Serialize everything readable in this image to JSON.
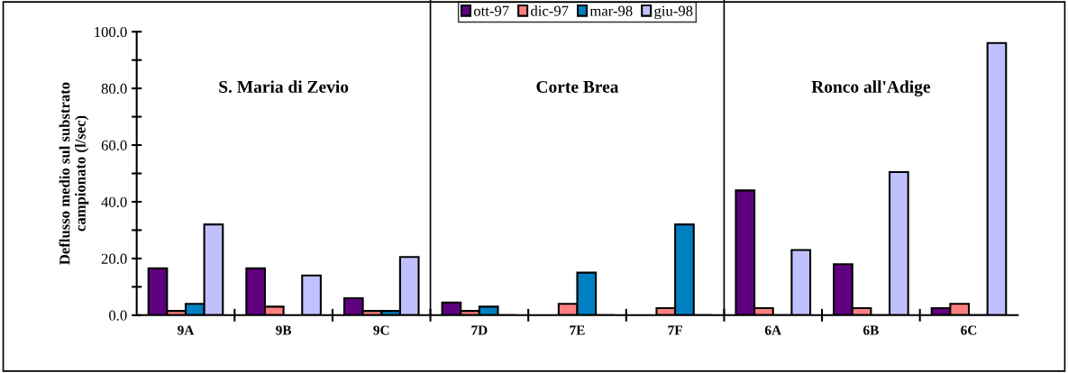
{
  "chart_data": {
    "type": "bar",
    "ylabel": "Deflusso medio sul substrato\ncampionato (l/sec)",
    "categories": [
      "9A",
      "9B",
      "9C",
      "7D",
      "7E",
      "7F",
      "6A",
      "6B",
      "6C"
    ],
    "series": [
      {
        "name": "ott-97",
        "color": "#5f007f",
        "values": [
          16.5,
          16.5,
          6,
          4.5,
          null,
          null,
          44,
          18,
          2.5
        ]
      },
      {
        "name": "dic-97",
        "color": "#ff8080",
        "values": [
          1.5,
          3,
          1.5,
          1.5,
          4,
          2.5,
          2.5,
          2.5,
          4
        ]
      },
      {
        "name": "mar-98",
        "color": "#0080c0",
        "values": [
          4,
          null,
          1.5,
          3,
          15,
          32,
          0,
          0,
          0
        ]
      },
      {
        "name": "giu-98",
        "color": "#c0c0ff",
        "values": [
          32,
          14,
          20.5,
          0,
          0,
          0,
          23,
          50.5,
          96
        ]
      }
    ],
    "ylim": [
      0,
      100
    ],
    "yticks": [
      {
        "value": 0,
        "label": "0.0"
      },
      {
        "value": 10,
        "label": null
      },
      {
        "value": 20,
        "label": "20.0"
      },
      {
        "value": 30,
        "label": null
      },
      {
        "value": 40,
        "label": "40.0"
      },
      {
        "value": 50,
        "label": null
      },
      {
        "value": 60,
        "label": "60.0"
      },
      {
        "value": 70,
        "label": null
      },
      {
        "value": 80,
        "label": "80.0"
      },
      {
        "value": 90,
        "label": null
      },
      {
        "value": 100,
        "label": "100.0"
      }
    ],
    "annotations": [
      "S. Maria di Zevio",
      "Corte Brea",
      "Ronco all'Adige"
    ],
    "grid": false,
    "legend": "top"
  }
}
